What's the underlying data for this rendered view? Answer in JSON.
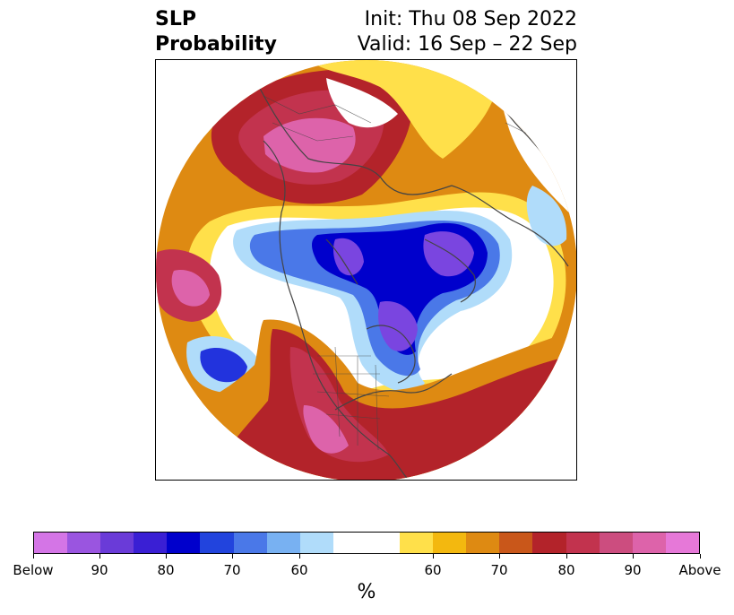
{
  "title": {
    "left_line1": "SLP",
    "left_line2": "Probability",
    "right_line1": "Init: Thu 08 Sep 2022",
    "right_line2": "Valid: 16 Sep – 22 Sep"
  },
  "colorbar": {
    "unit": "%",
    "colors": [
      "#d475e6",
      "#9a55e0",
      "#6a3bd8",
      "#3a1fd4",
      "#0000cc",
      "#2244dd",
      "#4a78e8",
      "#78b1f2",
      "#b0dcfa",
      "#ffffff",
      "#ffffff",
      "#ffe04a",
      "#f3b80f",
      "#de8a12",
      "#c9571a",
      "#b3232a",
      "#c2334e",
      "#cc4d7f",
      "#dd63aa",
      "#e678d8"
    ],
    "tick_labels": [
      "Below",
      "90",
      "80",
      "70",
      "60",
      "60",
      "70",
      "80",
      "90",
      "Above"
    ]
  },
  "map": {
    "projection": "north-polar-stereographic",
    "colors": {
      "above_high": "#dd63aa",
      "above_mid": "#c2334e",
      "above_low": "#b3232a",
      "warm_orange": "#de8a12",
      "warm_yellow": "#ffe04a",
      "below_light": "#b0dcfa",
      "below_mid": "#4a78e8",
      "below_high": "#2233dd",
      "below_max": "#7a45e0",
      "coast": "#444444"
    }
  }
}
